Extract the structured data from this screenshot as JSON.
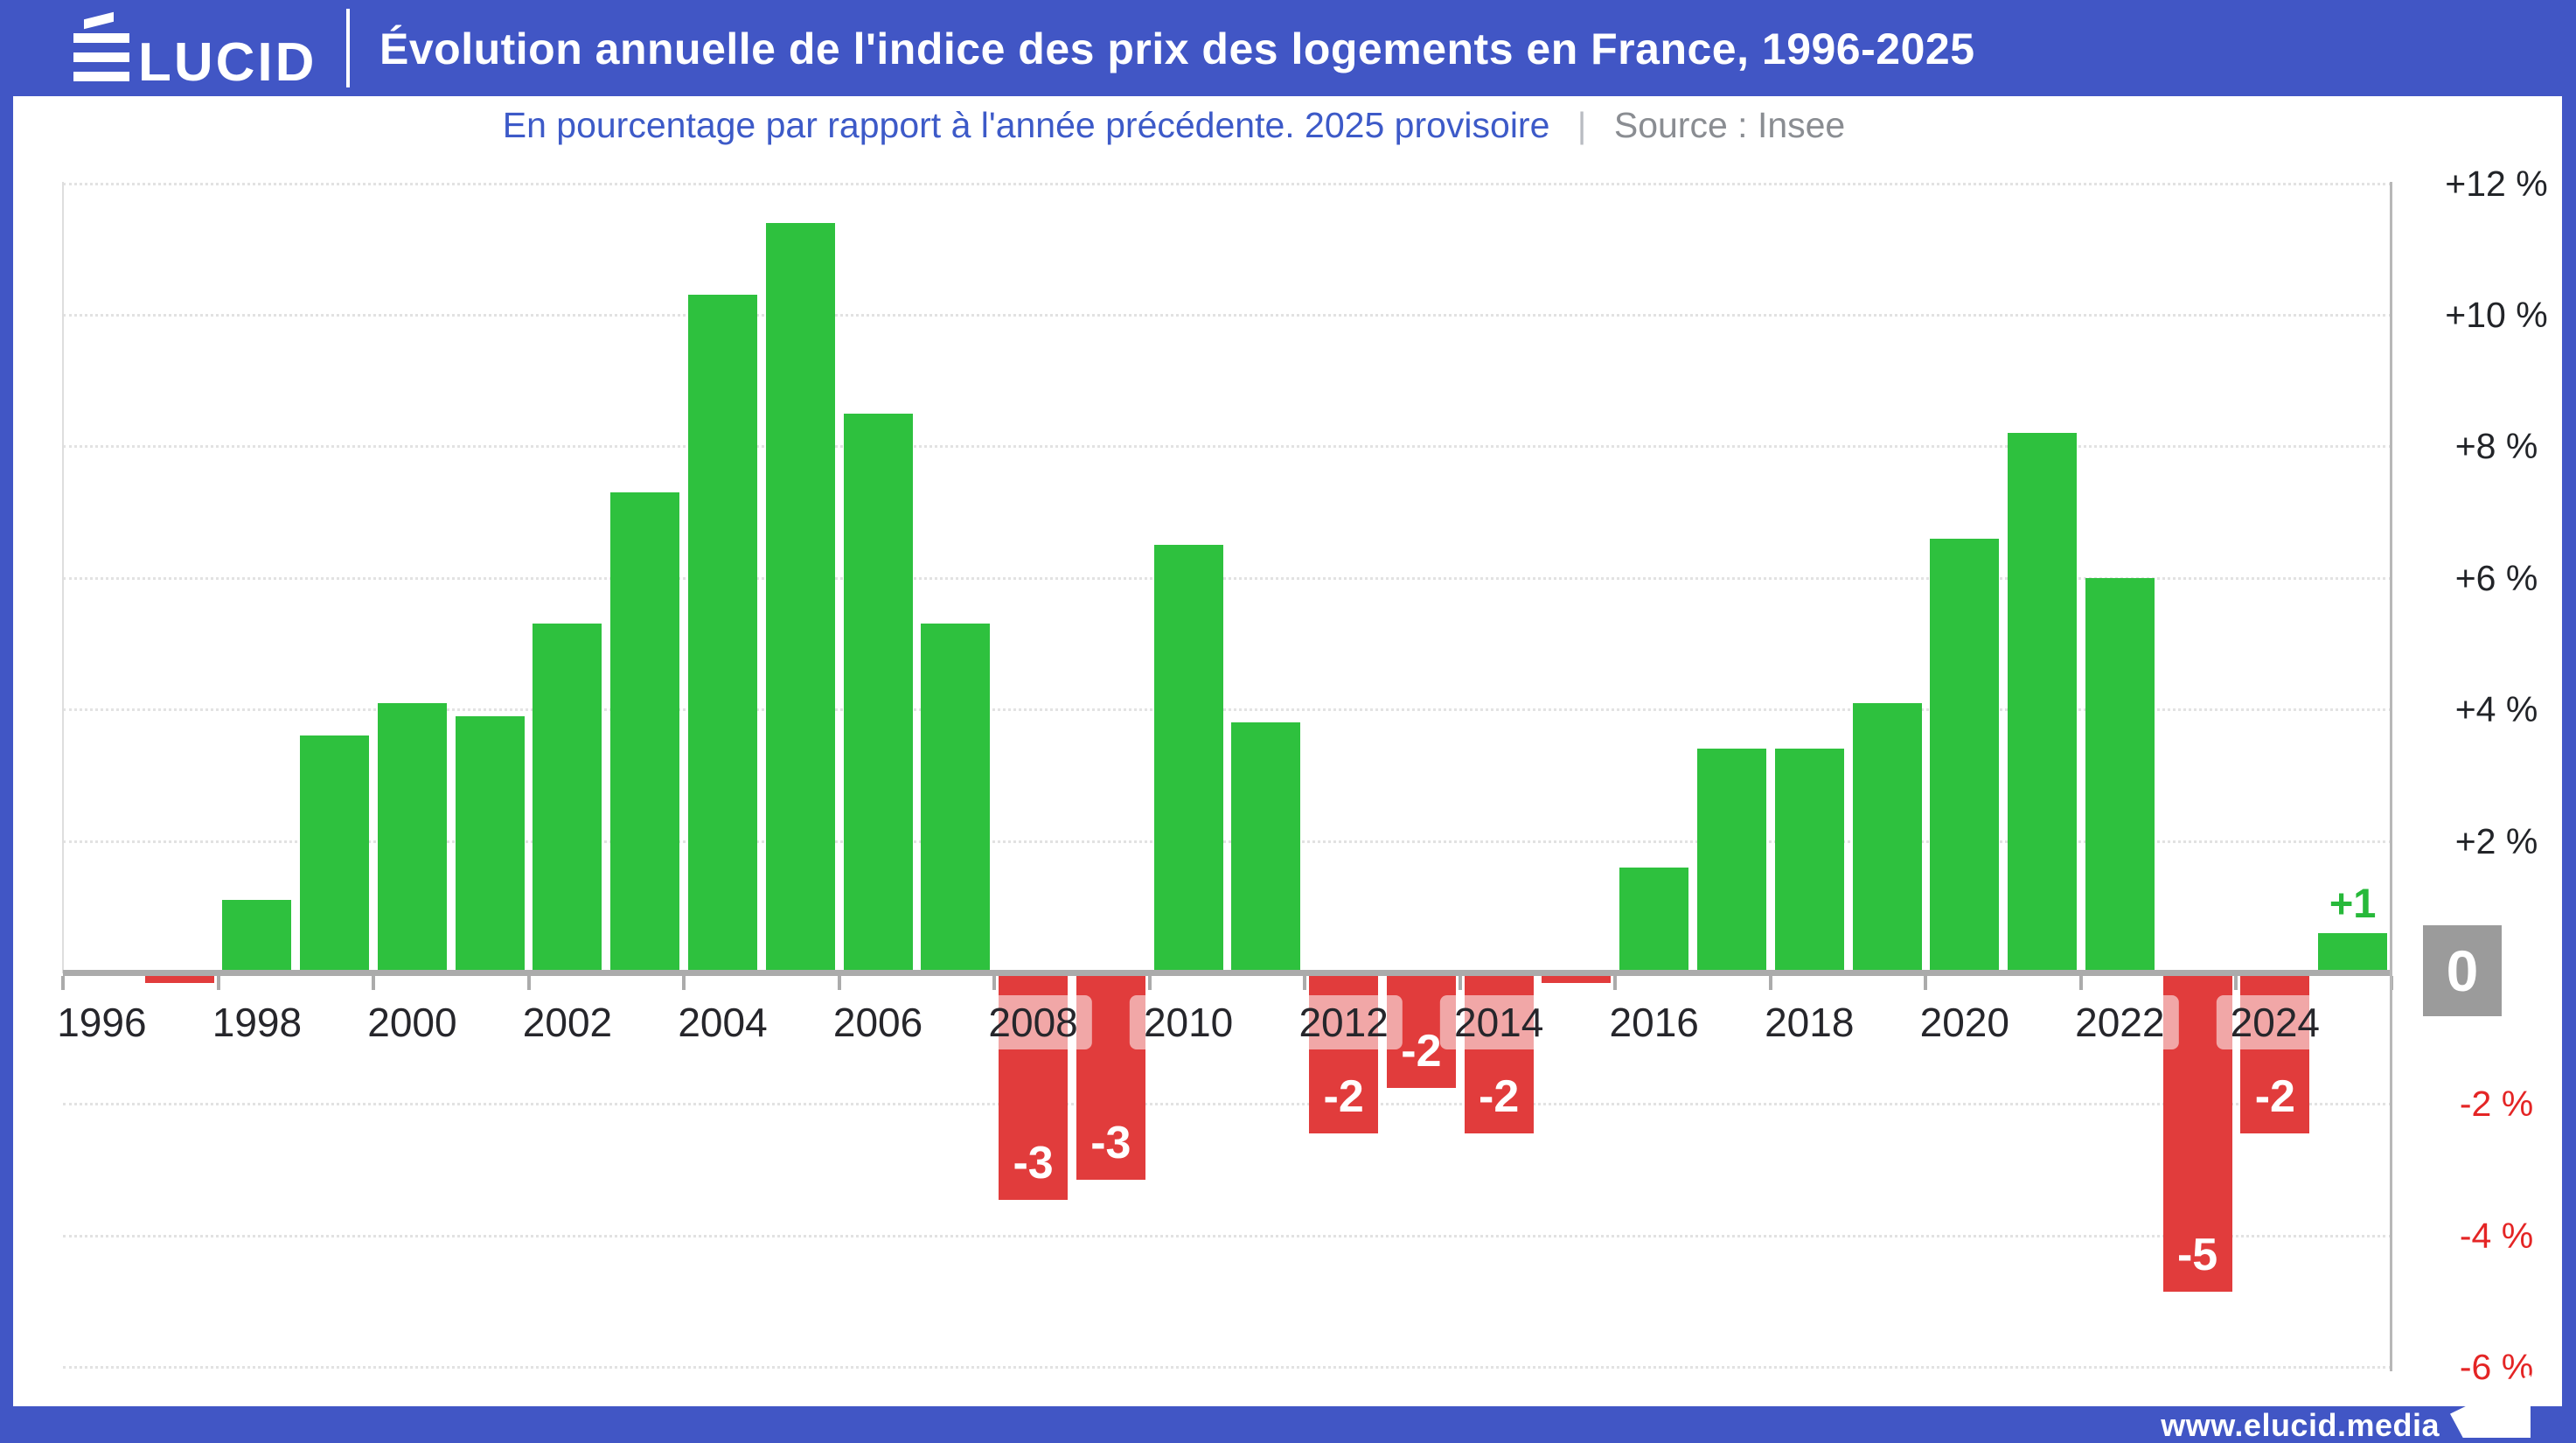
{
  "header": {
    "logo": {
      "accent_letter": "É",
      "rest": "LUCID"
    },
    "title": "Évolution annuelle de l'indice des prix des logements en France, 1996-2025"
  },
  "subtitle": {
    "text": "En pourcentage par rapport à l'année précédente. 2025 provisoire",
    "separator": "|",
    "source": "Source : Insee"
  },
  "footer": {
    "url": "www.elucid.media"
  },
  "chart_data": {
    "type": "bar",
    "title": "Évolution annuelle de l'indice des prix des logements en France, 1996-2025",
    "subtitle": "En pourcentage par rapport à l'année précédente. 2025 provisoire",
    "source": "Source : Insee",
    "unit": "percent",
    "x": [
      1996,
      1997,
      1998,
      1999,
      2000,
      2001,
      2002,
      2003,
      2004,
      2005,
      2006,
      2007,
      2008,
      2009,
      2010,
      2011,
      2012,
      2013,
      2014,
      2015,
      2016,
      2017,
      2018,
      2019,
      2020,
      2021,
      2022,
      2023,
      2024,
      2025
    ],
    "values": [
      0.0,
      -0.1,
      1.1,
      3.6,
      4.1,
      3.9,
      5.3,
      7.3,
      10.3,
      11.4,
      8.5,
      5.3,
      -3.4,
      -3.1,
      6.5,
      3.8,
      -2.4,
      -1.7,
      -2.4,
      -0.1,
      1.6,
      3.4,
      3.4,
      4.1,
      6.6,
      8.2,
      6.0,
      -4.8,
      -2.4,
      0.6
    ],
    "value_labels": {
      "2008": "-3",
      "2009": "-3",
      "2012": "-2",
      "2013": "-2",
      "2014": "-2",
      "2023": "-5",
      "2024": "-2",
      "2025": "+1"
    },
    "x_tick_labels": [
      "1996",
      "1998",
      "2000",
      "2002",
      "2004",
      "2006",
      "2008",
      "2010",
      "2012",
      "2014",
      "2016",
      "2018",
      "2020",
      "2022",
      "2024"
    ],
    "y_ticks": [
      {
        "value": 12,
        "label": "+12 %"
      },
      {
        "value": 10,
        "label": "+10 %"
      },
      {
        "value": 8,
        "label": "+8 %"
      },
      {
        "value": 6,
        "label": "+6 %"
      },
      {
        "value": 4,
        "label": "+4 %"
      },
      {
        "value": 2,
        "label": "+2 %"
      },
      {
        "value": 0,
        "label": "0",
        "badge": true
      },
      {
        "value": -2,
        "label": "-2 %"
      },
      {
        "value": -4,
        "label": "-4 %"
      },
      {
        "value": -6,
        "label": "-6 %"
      }
    ],
    "ylim": [
      -6,
      12
    ],
    "grid": true,
    "legend": false,
    "colors": {
      "positive": "#2ec13e",
      "negative": "#e13c3c",
      "positive_value_label": "#27b93a",
      "negative_axis_label": "#e42525",
      "axis_label": "#222428",
      "zero_badge": "#9b9b9b",
      "zero_axis": "#ababab",
      "brand_blue": "#4156c5"
    }
  }
}
